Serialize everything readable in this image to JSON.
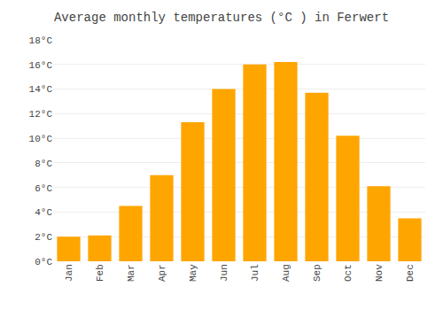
{
  "chart_data": {
    "type": "bar",
    "title": "Average monthly temperatures (°C ) in Ferwert",
    "categories": [
      "Jan",
      "Feb",
      "Mar",
      "Apr",
      "May",
      "Jun",
      "Jul",
      "Aug",
      "Sep",
      "Oct",
      "Nov",
      "Dec"
    ],
    "values": [
      2.0,
      2.1,
      4.5,
      7.0,
      11.3,
      14.0,
      16.0,
      16.2,
      13.7,
      10.2,
      6.1,
      3.5
    ],
    "color": "#FFA500",
    "ylim": [
      0,
      18
    ],
    "yticks": [
      {
        "value": 0,
        "label": "0°C"
      },
      {
        "value": 2,
        "label": "2°C"
      },
      {
        "value": 4,
        "label": "4°C"
      },
      {
        "value": 6,
        "label": "6°C"
      },
      {
        "value": 8,
        "label": "8°C"
      },
      {
        "value": 10,
        "label": "10°C"
      },
      {
        "value": 12,
        "label": "12°C"
      },
      {
        "value": 14,
        "label": "14°C"
      },
      {
        "value": 16,
        "label": "16°C"
      },
      {
        "value": 18,
        "label": "18°C"
      }
    ],
    "grid": true
  }
}
